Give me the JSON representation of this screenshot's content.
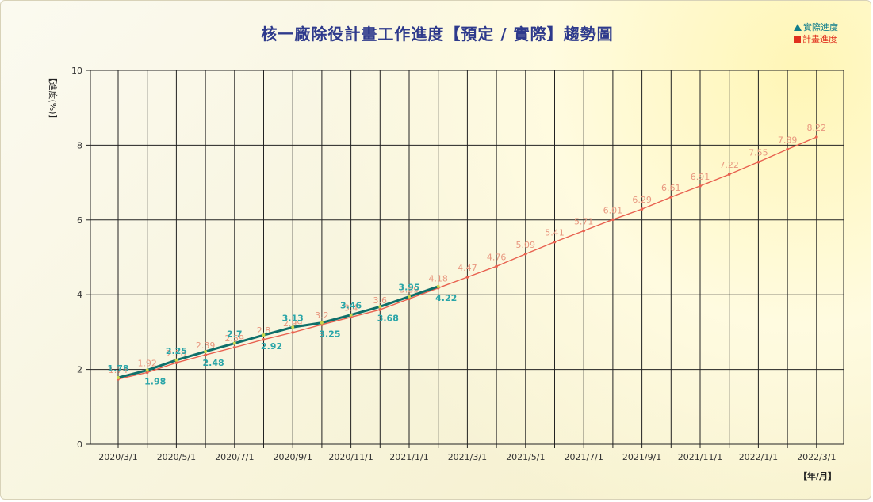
{
  "chart_data": {
    "type": "line",
    "title": "核一廠除役計畫工作進度【預定 / 實際】趨勢圖",
    "ylabel": "【進度(%)】",
    "xlabel": "【年/月】",
    "ylim": [
      0,
      10
    ],
    "y_ticks": [
      "0",
      "2",
      "4",
      "6",
      "8",
      "10"
    ],
    "x_ticks": [
      "2020/3/1",
      "2020/5/1",
      "2020/7/1",
      "2020/9/1",
      "2020/11/1",
      "2021/1/1",
      "2021/3/1",
      "2021/5/1",
      "2021/7/1",
      "2021/9/1",
      "2021/11/1",
      "2022/1/1",
      "2022/3/1"
    ],
    "grid": true,
    "legend_position": "top-right",
    "series": [
      {
        "name": "實際進度",
        "color": "#117e8c",
        "x": [
          "2020/3/1",
          "2020/4/1",
          "2020/5/1",
          "2020/6/1",
          "2020/7/1",
          "2020/8/1",
          "2020/9/1",
          "2020/10/1",
          "2020/11/1",
          "2020/12/1",
          "2021/1/1",
          "2021/2/1"
        ],
        "values": [
          1.78,
          1.98,
          2.25,
          2.48,
          2.7,
          2.92,
          3.13,
          3.25,
          3.46,
          3.68,
          3.95,
          4.22
        ],
        "labels": [
          "1.78",
          "1.98",
          "2.25",
          "2.48",
          "2.7",
          "2.92",
          "3.13",
          "3.25",
          "3.46",
          "3.68",
          "3.95",
          "4.22"
        ]
      },
      {
        "name": "計畫進度",
        "color": "#e0301e",
        "x": [
          "2020/3/1",
          "2020/4/1",
          "2020/5/1",
          "2020/6/1",
          "2020/7/1",
          "2020/8/1",
          "2020/9/1",
          "2020/10/1",
          "2020/11/1",
          "2020/12/1",
          "2021/1/1",
          "2021/2/1",
          "2021/3/1",
          "2021/4/1",
          "2021/5/1",
          "2021/6/1",
          "2021/7/1",
          "2021/8/1",
          "2021/9/1",
          "2021/10/1",
          "2021/11/1",
          "2021/12/1",
          "2022/1/1",
          "2022/2/1",
          "2022/3/1"
        ],
        "values": [
          1.74,
          1.92,
          2.18,
          2.39,
          2.59,
          2.8,
          2.99,
          3.2,
          3.4,
          3.6,
          3.89,
          4.18,
          4.47,
          4.76,
          5.09,
          5.41,
          5.71,
          6.01,
          6.29,
          6.61,
          6.91,
          7.22,
          7.55,
          7.89,
          8.22
        ],
        "labels": [
          "1.74",
          "1.92",
          "2.18",
          "2.39",
          "2.59",
          "2.8",
          "2.99",
          "3.2",
          "3.4",
          "3.6",
          "3.89",
          "4.18",
          "4.47",
          "4.76",
          "5.09",
          "5.41",
          "5.71",
          "6.01",
          "6.29",
          "6.61",
          "6.91",
          "7.22",
          "7.55",
          "7.89",
          "8.22"
        ]
      }
    ]
  }
}
